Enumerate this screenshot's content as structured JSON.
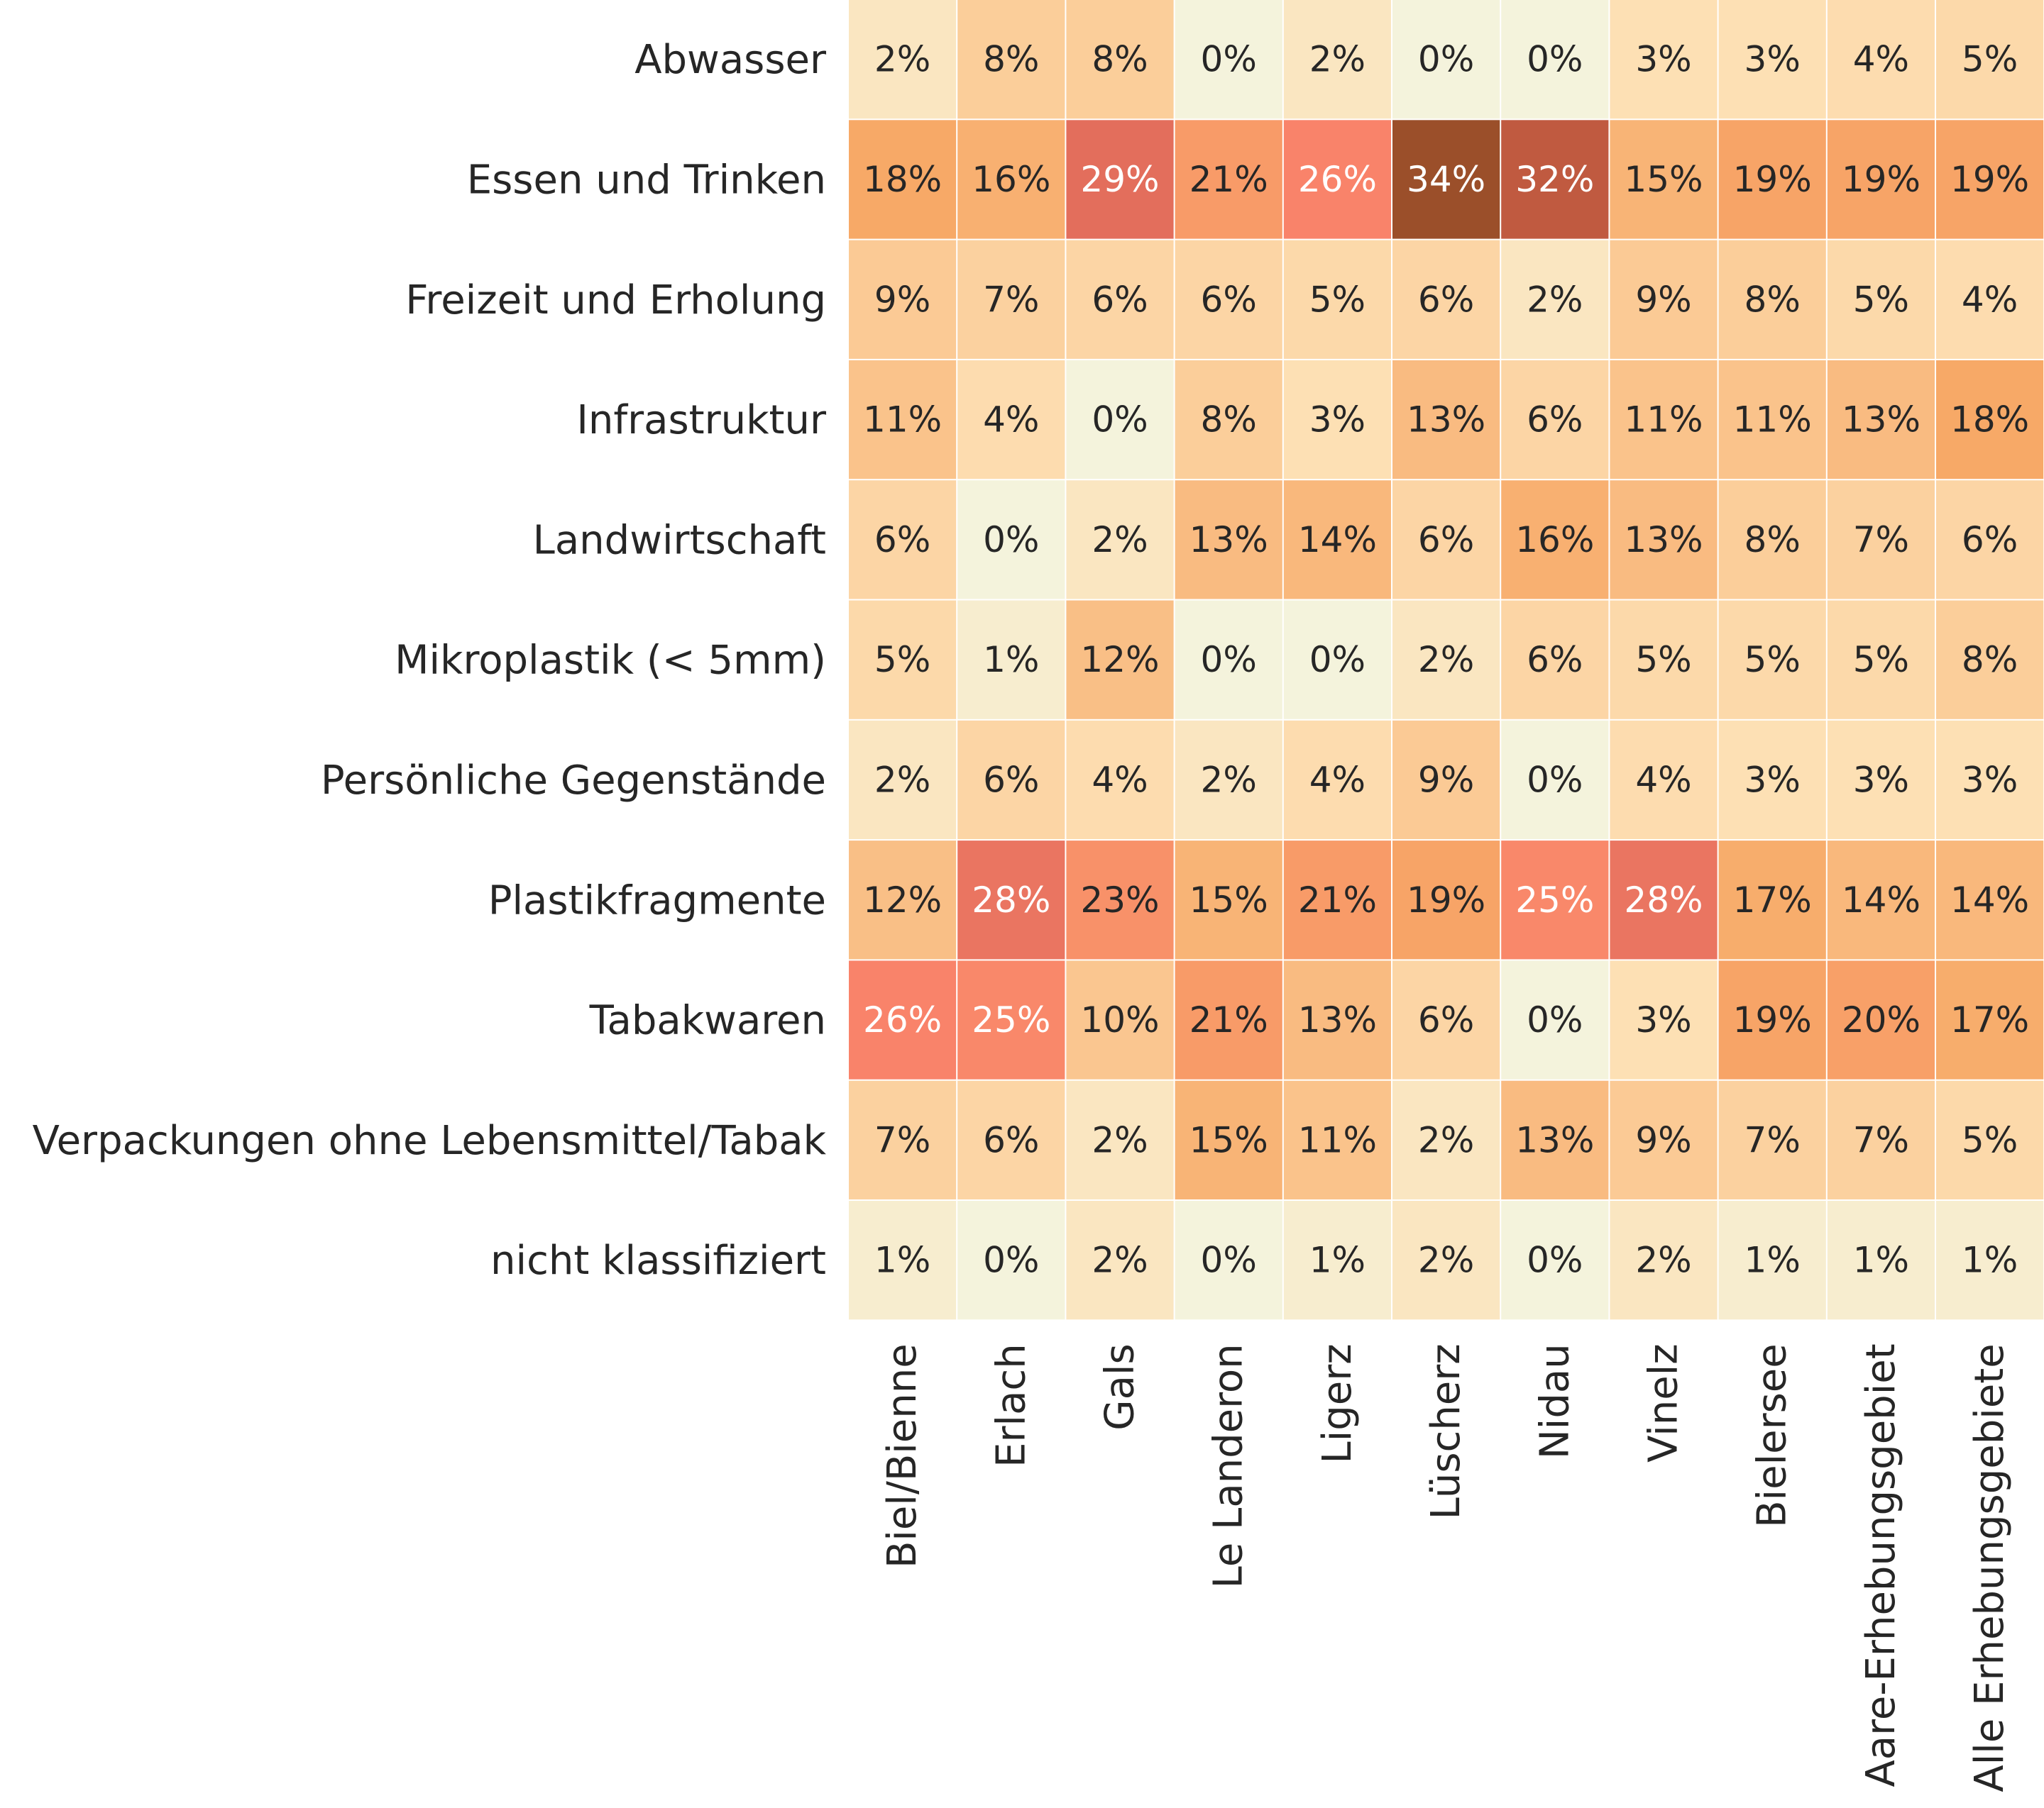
{
  "chart_data": {
    "type": "heatmap",
    "title": "",
    "xlabel": "",
    "ylabel": "",
    "rows": [
      "Abwasser",
      "Essen und Trinken",
      "Freizeit und Erholung",
      "Infrastruktur",
      "Landwirtschaft",
      "Mikroplastik (< 5mm)",
      "Persönliche Gegenstände",
      "Plastikfragmente",
      "Tabakwaren",
      "Verpackungen ohne Lebensmittel/Tabak",
      "nicht klassifiziert"
    ],
    "columns": [
      "Biel/Bienne",
      "Erlach",
      "Gals",
      "Le Landeron",
      "Ligerz",
      "Lüscherz",
      "Nidau",
      "Vinelz",
      "Bielersee",
      "Aare-Erhebungsgebiet",
      "Alle Erhebungsgebiete"
    ],
    "values": [
      [
        2,
        8,
        8,
        0,
        2,
        0,
        0,
        3,
        3,
        4,
        5
      ],
      [
        18,
        16,
        29,
        21,
        26,
        34,
        32,
        15,
        19,
        19,
        19
      ],
      [
        9,
        7,
        6,
        6,
        5,
        6,
        2,
        9,
        8,
        5,
        4
      ],
      [
        11,
        4,
        0,
        8,
        3,
        13,
        6,
        11,
        11,
        13,
        18
      ],
      [
        6,
        0,
        2,
        13,
        14,
        6,
        16,
        13,
        8,
        7,
        6
      ],
      [
        5,
        1,
        12,
        0,
        0,
        2,
        6,
        5,
        5,
        5,
        8
      ],
      [
        2,
        6,
        4,
        2,
        4,
        9,
        0,
        4,
        3,
        3,
        3
      ],
      [
        12,
        28,
        23,
        15,
        21,
        19,
        25,
        28,
        17,
        14,
        14
      ],
      [
        26,
        25,
        10,
        21,
        13,
        6,
        0,
        3,
        19,
        20,
        17
      ],
      [
        7,
        6,
        2,
        15,
        11,
        2,
        13,
        9,
        7,
        7,
        5
      ],
      [
        1,
        0,
        2,
        0,
        1,
        2,
        0,
        2,
        1,
        1,
        1
      ]
    ],
    "value_format": "{v}%",
    "colorbar": false,
    "grid": false,
    "colormap_range": [
      0,
      34
    ],
    "colors": {
      "low": "#f4f3dc",
      "light": "#fde0b4",
      "mid": "#f7a967",
      "salmon": "#f9836a",
      "red": "#e36e5c",
      "dark": "#c05a40",
      "darkest": "#9b4f2a",
      "text_dark": "#262626",
      "text_light": "#ffffff"
    }
  }
}
